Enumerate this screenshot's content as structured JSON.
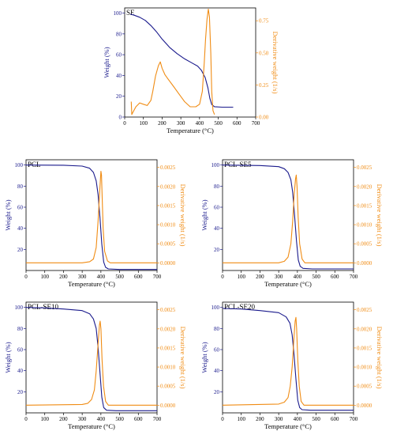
{
  "colors": {
    "weight": "#1a1a8c",
    "derivative": "#f08c14",
    "axis": "#000000"
  },
  "chart_data": [
    {
      "type": "line",
      "label": "SE",
      "xlabel": "Temperature (°C)",
      "ylabel_left": "Weight (%)",
      "ylabel_right": "Derivative weight (1/s)",
      "xlim": [
        0,
        700
      ],
      "ylim_left": [
        0,
        105
      ],
      "ylim_right": [
        0,
        0.85
      ],
      "xticks": [
        0,
        100,
        200,
        300,
        400,
        500,
        600,
        700
      ],
      "yticks_left": [
        0,
        20,
        40,
        60,
        80,
        100
      ],
      "yticks_right": [
        0,
        0.25,
        0.5,
        0.75
      ],
      "yticks_right_labels": [
        "0.00",
        "0.25",
        "0.50",
        "0.75"
      ],
      "series": [
        {
          "axis": "left",
          "x": [
            30,
            50,
            80,
            110,
            140,
            170,
            200,
            240,
            280,
            320,
            360,
            390,
            410,
            430,
            445,
            455,
            465,
            480,
            520,
            580
          ],
          "y": [
            99,
            98,
            96,
            93,
            88,
            82,
            75,
            67,
            61,
            56,
            52,
            49,
            45,
            38,
            28,
            18,
            12,
            10,
            9.5,
            9.5
          ]
        },
        {
          "axis": "right",
          "x": [
            35,
            38,
            45,
            60,
            80,
            100,
            120,
            140,
            150,
            165,
            180,
            190,
            200,
            215,
            230,
            260,
            290,
            320,
            350,
            380,
            400,
            415,
            425,
            432,
            440,
            447,
            453,
            460,
            465,
            472,
            480
          ],
          "y": [
            0.12,
            0.02,
            0.04,
            0.08,
            0.11,
            0.1,
            0.09,
            0.13,
            0.2,
            0.32,
            0.4,
            0.43,
            0.38,
            0.33,
            0.3,
            0.24,
            0.18,
            0.12,
            0.08,
            0.08,
            0.1,
            0.2,
            0.42,
            0.6,
            0.76,
            0.84,
            0.78,
            0.5,
            0.2,
            0.05,
            0.02
          ]
        }
      ]
    },
    {
      "type": "line",
      "label": "PCL",
      "xlabel": "Temperature (°C)",
      "ylabel_left": "Weight (%)",
      "ylabel_right": "Derivative weight (1/s)",
      "xlim": [
        0,
        700
      ],
      "ylim_left": [
        0,
        105
      ],
      "ylim_right": [
        -0.0002,
        0.0027
      ],
      "xticks": [
        0,
        100,
        200,
        300,
        400,
        500,
        600,
        700
      ],
      "yticks_left": [
        20,
        40,
        60,
        80,
        100
      ],
      "yticks_right": [
        0,
        0.0005,
        0.001,
        0.0015,
        0.002,
        0.0025
      ],
      "yticks_right_labels": [
        "0.0000",
        "0.0005",
        "0.0010",
        "0.0015",
        "0.0020",
        "0.0025"
      ],
      "series": [
        {
          "axis": "left",
          "x": [
            0,
            200,
            300,
            340,
            360,
            375,
            385,
            395,
            405,
            415,
            425,
            440,
            500,
            700
          ],
          "y": [
            100,
            99.8,
            99,
            97,
            93,
            85,
            72,
            50,
            25,
            8,
            3,
            1.5,
            1,
            1
          ]
        },
        {
          "axis": "right",
          "x": [
            0,
            300,
            340,
            360,
            375,
            385,
            395,
            400,
            403,
            407,
            412,
            420,
            435,
            450,
            700
          ],
          "y": [
            0,
            0,
            3e-05,
            0.0001,
            0.0004,
            0.0011,
            0.002,
            0.0024,
            0.0023,
            0.0017,
            0.0009,
            0.0003,
            5e-05,
            0,
            0
          ]
        }
      ]
    },
    {
      "type": "line",
      "label": "PCL-SE5",
      "xlabel": "Temperature (°C)",
      "ylabel_left": "Weight (%)",
      "ylabel_right": "Derivative weight (1/s)",
      "xlim": [
        0,
        700
      ],
      "ylim_left": [
        0,
        105
      ],
      "ylim_right": [
        -0.0002,
        0.0027
      ],
      "xticks": [
        0,
        100,
        200,
        300,
        400,
        500,
        600,
        700
      ],
      "yticks_left": [
        20,
        40,
        60,
        80,
        100
      ],
      "yticks_right": [
        0,
        0.0005,
        0.001,
        0.0015,
        0.002,
        0.0025
      ],
      "yticks_right_labels": [
        "0.0000",
        "0.0005",
        "0.0010",
        "0.0015",
        "0.0020",
        "0.0025"
      ],
      "series": [
        {
          "axis": "left",
          "x": [
            0,
            200,
            300,
            330,
            350,
            365,
            375,
            385,
            395,
            405,
            415,
            430,
            480,
            700
          ],
          "y": [
            100,
            99.5,
            98.5,
            96.5,
            93,
            86,
            74,
            52,
            28,
            10,
            4,
            2,
            1.5,
            1.5
          ]
        },
        {
          "axis": "right",
          "x": [
            0,
            300,
            330,
            350,
            365,
            375,
            383,
            390,
            394,
            398,
            404,
            412,
            425,
            440,
            700
          ],
          "y": [
            0,
            0,
            4e-05,
            0.00015,
            0.0005,
            0.0011,
            0.0018,
            0.0022,
            0.0023,
            0.002,
            0.0012,
            0.0005,
            0.0001,
            0,
            0
          ]
        }
      ]
    },
    {
      "type": "line",
      "label": "PCL-SE10",
      "xlabel": "Temperature (°C)",
      "ylabel_left": "Weight (%)",
      "ylabel_right": "Derivative weight (1/s)",
      "xlim": [
        0,
        700
      ],
      "ylim_left": [
        0,
        105
      ],
      "ylim_right": [
        -0.0002,
        0.0027
      ],
      "xticks": [
        0,
        100,
        200,
        300,
        400,
        500,
        600,
        700
      ],
      "yticks_left": [
        20,
        40,
        60,
        80,
        100
      ],
      "yticks_right": [
        0,
        0.0005,
        0.001,
        0.0015,
        0.002,
        0.0025
      ],
      "yticks_right_labels": [
        "0.0000",
        "0.0005",
        "0.0010",
        "0.0015",
        "0.0020",
        "0.0025"
      ],
      "series": [
        {
          "axis": "left",
          "x": [
            0,
            100,
            200,
            300,
            340,
            360,
            375,
            385,
            395,
            405,
            415,
            430,
            480,
            700
          ],
          "y": [
            100,
            99.5,
            98.5,
            97,
            94,
            89,
            80,
            62,
            38,
            15,
            5,
            2.5,
            2,
            2
          ]
        },
        {
          "axis": "right",
          "x": [
            0,
            300,
            330,
            350,
            365,
            375,
            385,
            392,
            396,
            400,
            406,
            414,
            425,
            440,
            700
          ],
          "y": [
            0,
            2e-05,
            5e-05,
            0.00015,
            0.0004,
            0.0009,
            0.0016,
            0.0021,
            0.0022,
            0.002,
            0.0012,
            0.0005,
            0.0001,
            0,
            0
          ]
        }
      ]
    },
    {
      "type": "line",
      "label": "PCL-SE20",
      "xlabel": "Temperature (°C)",
      "ylabel_left": "Weight (%)",
      "ylabel_right": "Derivative weight (1/s)",
      "xlim": [
        0,
        700
      ],
      "ylim_left": [
        0,
        105
      ],
      "ylim_right": [
        -0.0002,
        0.0027
      ],
      "xticks": [
        0,
        100,
        200,
        300,
        400,
        500,
        600,
        700
      ],
      "yticks_left": [
        20,
        40,
        60,
        80,
        100
      ],
      "yticks_right": [
        0,
        0.0005,
        0.001,
        0.0015,
        0.002,
        0.0025
      ],
      "yticks_right_labels": [
        "0.0000",
        "0.0005",
        "0.0010",
        "0.0015",
        "0.0020",
        "0.0025"
      ],
      "series": [
        {
          "axis": "left",
          "x": [
            0,
            100,
            200,
            300,
            340,
            360,
            372,
            382,
            392,
            402,
            412,
            425,
            470,
            700
          ],
          "y": [
            99,
            98.5,
            97,
            95,
            91,
            85,
            74,
            55,
            32,
            12,
            5,
            3,
            2.5,
            2.5
          ]
        },
        {
          "axis": "right",
          "x": [
            0,
            300,
            330,
            350,
            362,
            372,
            382,
            388,
            392,
            396,
            402,
            410,
            420,
            435,
            700
          ],
          "y": [
            0,
            3e-05,
            8e-05,
            0.0002,
            0.0005,
            0.001,
            0.0018,
            0.0022,
            0.0023,
            0.002,
            0.0012,
            0.0005,
            0.0001,
            0,
            0
          ]
        }
      ]
    }
  ]
}
